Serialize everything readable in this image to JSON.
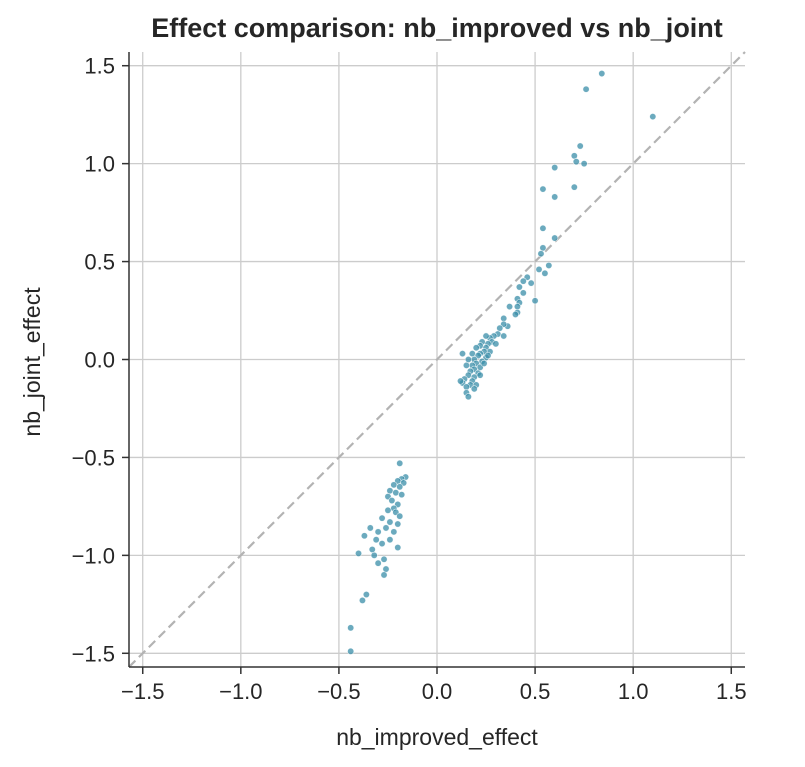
{
  "chart_data": {
    "type": "scatter",
    "title": "Effect comparison: nb_improved vs nb_joint",
    "xlabel": "nb_improved_effect",
    "ylabel": "nb_joint_effect",
    "xlim": [
      -1.57,
      1.57
    ],
    "ylim": [
      -1.57,
      1.57
    ],
    "xticks": [
      -1.5,
      -1.0,
      -0.5,
      0.0,
      0.5,
      1.0,
      1.5
    ],
    "yticks": [
      -1.5,
      -1.0,
      -0.5,
      0.0,
      0.5,
      1.0,
      1.5
    ],
    "tick_labels": [
      "−1.5",
      "−1.0",
      "−0.5",
      "0.0",
      "0.5",
      "1.0",
      "1.5"
    ],
    "grid": true,
    "reference_line": {
      "x": [
        -1.57,
        1.57
      ],
      "y": [
        -1.57,
        1.57
      ],
      "style": "dashed",
      "color": "#b3b3b3"
    },
    "marker_color": "#3a8ea8",
    "points": [
      {
        "x": 0.84,
        "y": 1.46
      },
      {
        "x": 0.76,
        "y": 1.38
      },
      {
        "x": 1.1,
        "y": 1.24
      },
      {
        "x": 0.73,
        "y": 1.09
      },
      {
        "x": 0.7,
        "y": 1.04
      },
      {
        "x": 0.71,
        "y": 1.01
      },
      {
        "x": 0.75,
        "y": 1.0
      },
      {
        "x": 0.6,
        "y": 0.98
      },
      {
        "x": 0.54,
        "y": 0.87
      },
      {
        "x": 0.7,
        "y": 0.88
      },
      {
        "x": 0.6,
        "y": 0.83
      },
      {
        "x": 0.54,
        "y": 0.67
      },
      {
        "x": 0.6,
        "y": 0.62
      },
      {
        "x": 0.54,
        "y": 0.57
      },
      {
        "x": 0.53,
        "y": 0.54
      },
      {
        "x": 0.57,
        "y": 0.48
      },
      {
        "x": 0.52,
        "y": 0.46
      },
      {
        "x": 0.55,
        "y": 0.44
      },
      {
        "x": 0.46,
        "y": 0.42
      },
      {
        "x": 0.44,
        "y": 0.4
      },
      {
        "x": 0.48,
        "y": 0.39
      },
      {
        "x": 0.42,
        "y": 0.37
      },
      {
        "x": 0.44,
        "y": 0.34
      },
      {
        "x": 0.5,
        "y": 0.3
      },
      {
        "x": 0.41,
        "y": 0.31
      },
      {
        "x": 0.42,
        "y": 0.29
      },
      {
        "x": 0.41,
        "y": 0.27
      },
      {
        "x": 0.37,
        "y": 0.27
      },
      {
        "x": 0.41,
        "y": 0.24
      },
      {
        "x": 0.4,
        "y": 0.23
      },
      {
        "x": 0.34,
        "y": 0.21
      },
      {
        "x": 0.36,
        "y": 0.17
      },
      {
        "x": 0.34,
        "y": 0.18
      },
      {
        "x": 0.32,
        "y": 0.16
      },
      {
        "x": 0.31,
        "y": 0.13
      },
      {
        "x": 0.34,
        "y": 0.12
      },
      {
        "x": 0.29,
        "y": 0.12
      },
      {
        "x": 0.27,
        "y": 0.11
      },
      {
        "x": 0.25,
        "y": 0.12
      },
      {
        "x": 0.28,
        "y": 0.09
      },
      {
        "x": 0.3,
        "y": 0.08
      },
      {
        "x": 0.26,
        "y": 0.08
      },
      {
        "x": 0.23,
        "y": 0.09
      },
      {
        "x": 0.22,
        "y": 0.07
      },
      {
        "x": 0.25,
        "y": 0.06
      },
      {
        "x": 0.2,
        "y": 0.06
      },
      {
        "x": 0.27,
        "y": 0.04
      },
      {
        "x": 0.24,
        "y": 0.04
      },
      {
        "x": 0.22,
        "y": 0.03
      },
      {
        "x": 0.18,
        "y": 0.03
      },
      {
        "x": 0.13,
        "y": 0.03
      },
      {
        "x": 0.21,
        "y": 0.02
      },
      {
        "x": 0.25,
        "y": 0.01
      },
      {
        "x": 0.19,
        "y": 0.0
      },
      {
        "x": 0.16,
        "y": 0.0
      },
      {
        "x": 0.23,
        "y": -0.01
      },
      {
        "x": 0.2,
        "y": -0.02
      },
      {
        "x": 0.18,
        "y": -0.03
      },
      {
        "x": 0.15,
        "y": -0.03
      },
      {
        "x": 0.22,
        "y": -0.04
      },
      {
        "x": 0.19,
        "y": -0.05
      },
      {
        "x": 0.17,
        "y": -0.06
      },
      {
        "x": 0.21,
        "y": -0.07
      },
      {
        "x": 0.16,
        "y": -0.08
      },
      {
        "x": 0.19,
        "y": -0.09
      },
      {
        "x": 0.14,
        "y": -0.1
      },
      {
        "x": 0.18,
        "y": -0.11
      },
      {
        "x": 0.13,
        "y": -0.12
      },
      {
        "x": 0.17,
        "y": -0.13
      },
      {
        "x": 0.2,
        "y": -0.13
      },
      {
        "x": 0.15,
        "y": -0.14
      },
      {
        "x": 0.19,
        "y": -0.15
      },
      {
        "x": 0.15,
        "y": -0.17
      },
      {
        "x": 0.16,
        "y": -0.19
      },
      {
        "x": 0.22,
        "y": -0.08
      },
      {
        "x": 0.24,
        "y": -0.02
      },
      {
        "x": 0.26,
        "y": 0.02
      },
      {
        "x": 0.12,
        "y": -0.11
      },
      {
        "x": -0.19,
        "y": -0.53
      },
      {
        "x": -0.16,
        "y": -0.6
      },
      {
        "x": -0.18,
        "y": -0.61
      },
      {
        "x": -0.2,
        "y": -0.62
      },
      {
        "x": -0.17,
        "y": -0.63
      },
      {
        "x": -0.22,
        "y": -0.64
      },
      {
        "x": -0.19,
        "y": -0.65
      },
      {
        "x": -0.24,
        "y": -0.67
      },
      {
        "x": -0.21,
        "y": -0.68
      },
      {
        "x": -0.18,
        "y": -0.69
      },
      {
        "x": -0.25,
        "y": -0.7
      },
      {
        "x": -0.23,
        "y": -0.72
      },
      {
        "x": -0.2,
        "y": -0.74
      },
      {
        "x": -0.22,
        "y": -0.76
      },
      {
        "x": -0.25,
        "y": -0.77
      },
      {
        "x": -0.21,
        "y": -0.78
      },
      {
        "x": -0.19,
        "y": -0.8
      },
      {
        "x": -0.28,
        "y": -0.81
      },
      {
        "x": -0.24,
        "y": -0.83
      },
      {
        "x": -0.2,
        "y": -0.84
      },
      {
        "x": -0.26,
        "y": -0.86
      },
      {
        "x": -0.34,
        "y": -0.86
      },
      {
        "x": -0.3,
        "y": -0.88
      },
      {
        "x": -0.22,
        "y": -0.88
      },
      {
        "x": -0.37,
        "y": -0.9
      },
      {
        "x": -0.31,
        "y": -0.92
      },
      {
        "x": -0.24,
        "y": -0.92
      },
      {
        "x": -0.28,
        "y": -0.94
      },
      {
        "x": -0.2,
        "y": -0.96
      },
      {
        "x": -0.33,
        "y": -0.97
      },
      {
        "x": -0.4,
        "y": -0.99
      },
      {
        "x": -0.32,
        "y": -1.0
      },
      {
        "x": -0.27,
        "y": -1.02
      },
      {
        "x": -0.3,
        "y": -1.04
      },
      {
        "x": -0.26,
        "y": -1.07
      },
      {
        "x": -0.27,
        "y": -1.1
      },
      {
        "x": -0.36,
        "y": -1.2
      },
      {
        "x": -0.38,
        "y": -1.23
      },
      {
        "x": -0.44,
        "y": -1.37
      },
      {
        "x": -0.44,
        "y": -1.49
      }
    ]
  }
}
